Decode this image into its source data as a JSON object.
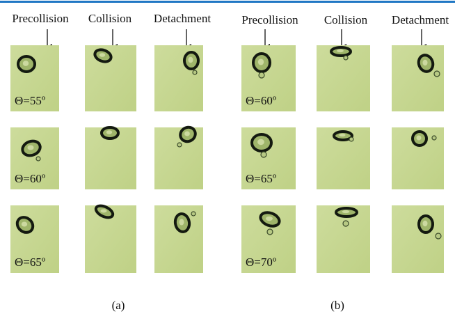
{
  "groups": [
    {
      "headings": [
        "Precollision",
        "Collision",
        "Detachment"
      ],
      "angles": [
        "Θ=55º",
        "Θ=60º",
        "Θ=65º"
      ],
      "caption": "(a)"
    },
    {
      "headings": [
        "Precollision",
        "Collision",
        "Detachment"
      ],
      "angles": [
        "Θ=60º",
        "Θ=65º",
        "Θ=70º"
      ],
      "caption": "(b)"
    }
  ]
}
